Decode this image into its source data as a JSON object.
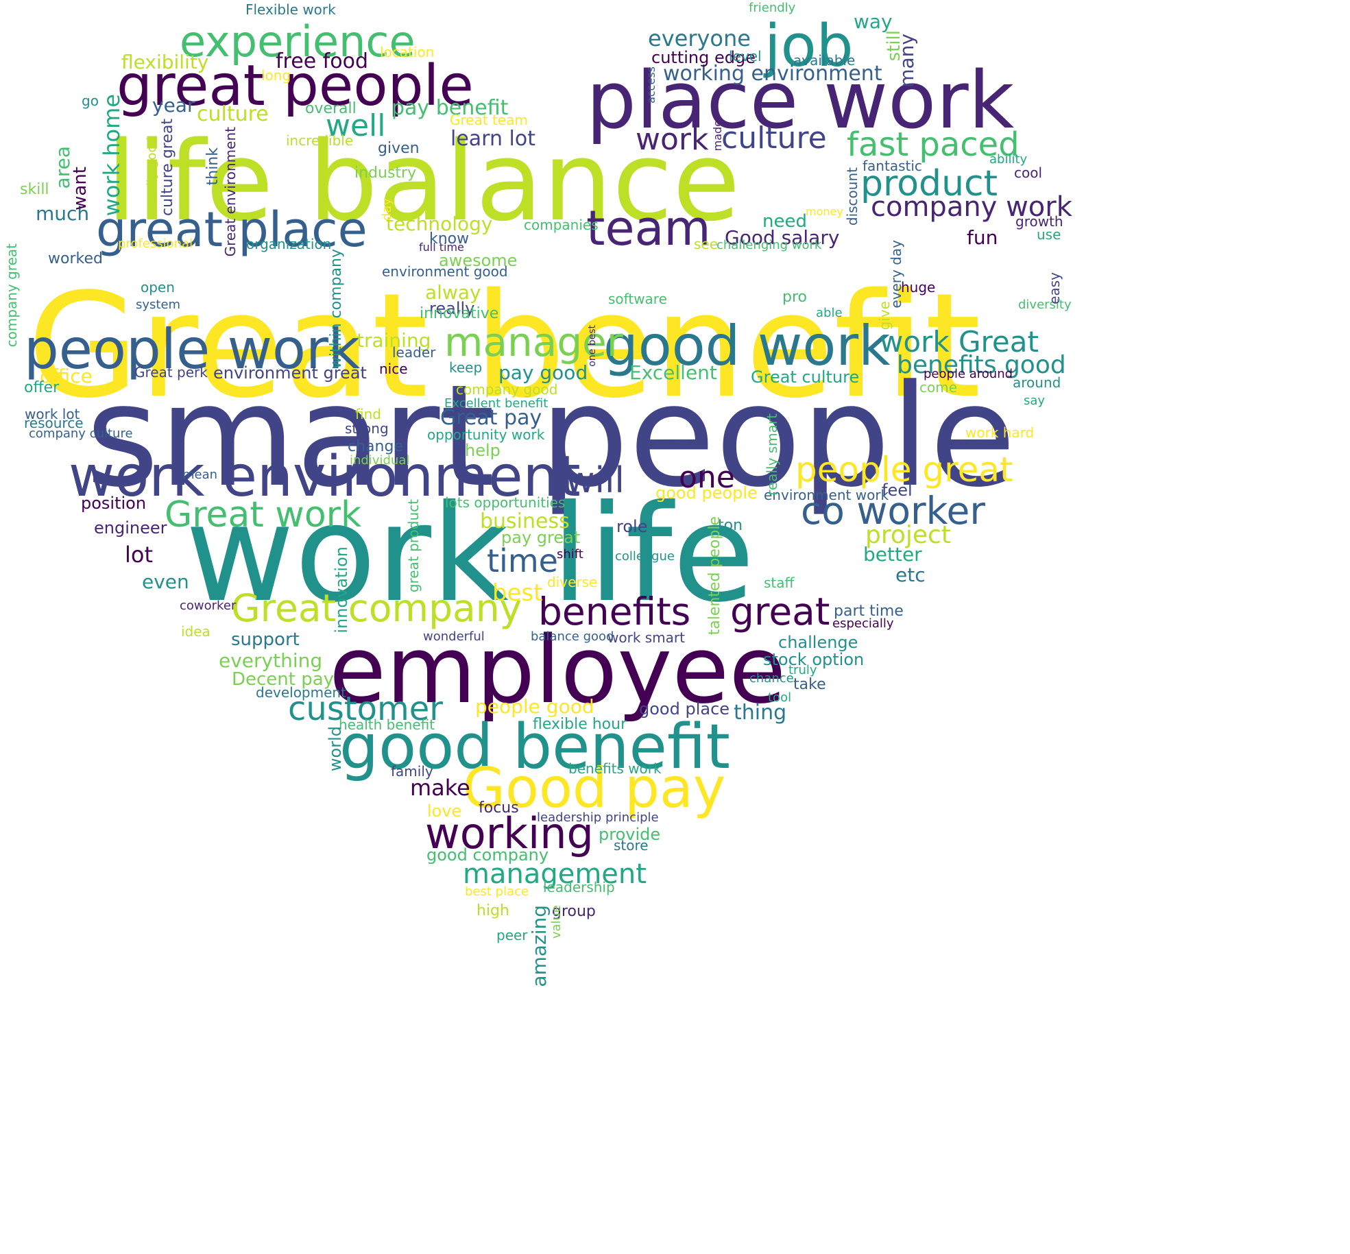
{
  "palette": {
    "p1": "#440154",
    "p2": "#482475",
    "p3": "#414487",
    "p4": "#355f8d",
    "p5": "#2a788e",
    "p6": "#21918c",
    "p7": "#22a884",
    "p8": "#44bf70",
    "p9": "#7ad151",
    "p10": "#bddf26",
    "p11": "#fde725"
  },
  "words": [
    {
      "text": "Great benefit",
      "color": "p11"
    },
    {
      "text": "smart people",
      "color": "p3"
    },
    {
      "text": "work life",
      "color": "p6"
    },
    {
      "text": "life balance",
      "color": "p10"
    },
    {
      "text": "employee",
      "color": "p1"
    },
    {
      "text": "place work",
      "color": "p2"
    },
    {
      "text": "good benefit",
      "color": "p6"
    },
    {
      "text": "great people",
      "color": "p1"
    },
    {
      "text": "work environment",
      "color": "p3"
    },
    {
      "text": "people work",
      "color": "p4"
    },
    {
      "text": "good work",
      "color": "p5"
    },
    {
      "text": "job",
      "color": "p6"
    },
    {
      "text": "Good pay",
      "color": "p11"
    },
    {
      "text": "great place",
      "color": "p4"
    },
    {
      "text": "experience",
      "color": "p8"
    },
    {
      "text": "team",
      "color": "p2"
    },
    {
      "text": "working",
      "color": "p1"
    },
    {
      "text": "Great company",
      "color": "p10"
    },
    {
      "text": "manager",
      "color": "p9"
    },
    {
      "text": "co worker",
      "color": "p4"
    },
    {
      "text": "benefits",
      "color": "p1"
    },
    {
      "text": "great",
      "color": "p1"
    },
    {
      "text": "Great work",
      "color": "p8"
    },
    {
      "text": "people great",
      "color": "p11"
    },
    {
      "text": "product",
      "color": "p6"
    },
    {
      "text": "fast paced",
      "color": "p8"
    },
    {
      "text": "customer",
      "color": "p6"
    },
    {
      "text": "will",
      "color": "p3"
    },
    {
      "text": "work Great",
      "color": "p6"
    },
    {
      "text": "time",
      "color": "p4"
    },
    {
      "text": "culture",
      "color": "p3"
    },
    {
      "text": "management",
      "color": "p7"
    },
    {
      "text": "well",
      "color": "p7"
    },
    {
      "text": "company work",
      "color": "p2"
    },
    {
      "text": "work",
      "color": "p2"
    },
    {
      "text": "one",
      "color": "p1"
    },
    {
      "text": "benefits good",
      "color": "p6"
    },
    {
      "text": "project",
      "color": "p10"
    },
    {
      "text": "everyone",
      "color": "p5"
    },
    {
      "text": "working environment",
      "color": "p4"
    },
    {
      "text": "free food",
      "color": "p1"
    },
    {
      "text": "lot",
      "color": "p1"
    },
    {
      "text": "best",
      "color": "p11"
    },
    {
      "text": "Good salary",
      "color": "p2"
    },
    {
      "text": "flexibility",
      "color": "p10"
    },
    {
      "text": "cutting edge",
      "color": "p1"
    },
    {
      "text": "pay benefit",
      "color": "p8"
    },
    {
      "text": "way",
      "color": "p7"
    },
    {
      "text": "Great pay",
      "color": "p4"
    },
    {
      "text": "business",
      "color": "p10"
    },
    {
      "text": "technology",
      "color": "p10"
    },
    {
      "text": "learn lot",
      "color": "p3"
    },
    {
      "text": "culture",
      "color": "p10"
    },
    {
      "text": "year",
      "color": "p4"
    },
    {
      "text": "training",
      "color": "p10"
    },
    {
      "text": "Excellent",
      "color": "p8"
    },
    {
      "text": "pay good",
      "color": "p6"
    },
    {
      "text": "need",
      "color": "p7"
    },
    {
      "text": "fun",
      "color": "p1"
    },
    {
      "text": "alway",
      "color": "p10"
    },
    {
      "text": "much",
      "color": "p5"
    },
    {
      "text": "better",
      "color": "p7"
    },
    {
      "text": "everything",
      "color": "p9"
    },
    {
      "text": "people good",
      "color": "p11"
    },
    {
      "text": "thing",
      "color": "p5"
    },
    {
      "text": "challenge",
      "color": "p6"
    },
    {
      "text": "Decent pay",
      "color": "p9"
    },
    {
      "text": "support",
      "color": "p5"
    },
    {
      "text": "etc",
      "color": "p5"
    },
    {
      "text": "even",
      "color": "p6"
    },
    {
      "text": "environment great",
      "color": "p3"
    },
    {
      "text": "Great culture",
      "color": "p7"
    },
    {
      "text": "awesome",
      "color": "p9"
    },
    {
      "text": "really",
      "color": "p3"
    },
    {
      "text": "pay great",
      "color": "p9"
    },
    {
      "text": "stock option",
      "color": "p6"
    },
    {
      "text": "help",
      "color": "p9"
    },
    {
      "text": "office",
      "color": "p11"
    },
    {
      "text": "good place",
      "color": "p3"
    },
    {
      "text": "make",
      "color": "p1"
    },
    {
      "text": "provide",
      "color": "p8"
    },
    {
      "text": "good company",
      "color": "p8"
    },
    {
      "text": "engineer",
      "color": "p2"
    },
    {
      "text": "position",
      "color": "p1"
    },
    {
      "text": "role",
      "color": "p3"
    },
    {
      "text": "feel",
      "color": "p3"
    },
    {
      "text": "love",
      "color": "p11"
    },
    {
      "text": "work smart",
      "color": "p3"
    },
    {
      "text": "group",
      "color": "p2"
    },
    {
      "text": "overall",
      "color": "p8"
    },
    {
      "text": "given",
      "color": "p4"
    },
    {
      "text": "industry",
      "color": "p9"
    },
    {
      "text": "know",
      "color": "p4"
    },
    {
      "text": "innovative",
      "color": "p8"
    },
    {
      "text": "strong",
      "color": "p3"
    },
    {
      "text": "change",
      "color": "p4"
    },
    {
      "text": "keep",
      "color": "p6"
    },
    {
      "text": "nice",
      "color": "p1"
    },
    {
      "text": "leader",
      "color": "p4"
    },
    {
      "text": "offer",
      "color": "p7"
    },
    {
      "text": "worked",
      "color": "p4"
    },
    {
      "text": "skill",
      "color": "p9"
    },
    {
      "text": "go",
      "color": "p6"
    },
    {
      "text": "Flexible work",
      "color": "p5"
    },
    {
      "text": "friendly",
      "color": "p8"
    },
    {
      "text": "level",
      "color": "p6"
    },
    {
      "text": "location",
      "color": "p11"
    },
    {
      "text": "available",
      "color": "p5"
    },
    {
      "text": "long",
      "color": "p11"
    },
    {
      "text": "Great team",
      "color": "p11"
    },
    {
      "text": "incredible",
      "color": "p10"
    },
    {
      "text": "fantastic",
      "color": "p4"
    },
    {
      "text": "ability",
      "color": "p7"
    },
    {
      "text": "cool",
      "color": "p2"
    },
    {
      "text": "growth",
      "color": "p2"
    },
    {
      "text": "use",
      "color": "p7"
    },
    {
      "text": "money",
      "color": "p11"
    },
    {
      "text": "companies",
      "color": "p8"
    },
    {
      "text": "organization",
      "color": "p6"
    },
    {
      "text": "professional",
      "color": "p11"
    },
    {
      "text": "full time",
      "color": "p2"
    },
    {
      "text": "see",
      "color": "p10"
    },
    {
      "text": "challenging work",
      "color": "p8"
    },
    {
      "text": "environment good",
      "color": "p4"
    },
    {
      "text": "open",
      "color": "p6"
    },
    {
      "text": "system",
      "color": "p4"
    },
    {
      "text": "software",
      "color": "p8"
    },
    {
      "text": "pro",
      "color": "p8"
    },
    {
      "text": "able",
      "color": "p7"
    },
    {
      "text": "huge",
      "color": "p1"
    },
    {
      "text": "diversity",
      "color": "p8"
    },
    {
      "text": "Great perk",
      "color": "p3"
    },
    {
      "text": "people around",
      "color": "p1"
    },
    {
      "text": "around",
      "color": "p6"
    },
    {
      "text": "say",
      "color": "p7"
    },
    {
      "text": "come",
      "color": "p9"
    },
    {
      "text": "company good",
      "color": "p10"
    },
    {
      "text": "Excellent benefit",
      "color": "p7"
    },
    {
      "text": "work lot",
      "color": "p4"
    },
    {
      "text": "resource",
      "color": "p5"
    },
    {
      "text": "company culture",
      "color": "p4"
    },
    {
      "text": "find",
      "color": "p10"
    },
    {
      "text": "opportunity work",
      "color": "p7"
    },
    {
      "text": "individual",
      "color": "p9"
    },
    {
      "text": "work hard",
      "color": "p11"
    },
    {
      "text": "mean",
      "color": "p4"
    },
    {
      "text": "good people",
      "color": "p11"
    },
    {
      "text": "environment work",
      "color": "p4"
    },
    {
      "text": "lots opportunities",
      "color": "p8"
    },
    {
      "text": "ton",
      "color": "p6"
    },
    {
      "text": "shift",
      "color": "p1"
    },
    {
      "text": "colleague",
      "color": "p6"
    },
    {
      "text": "diverse",
      "color": "p11"
    },
    {
      "text": "staff",
      "color": "p8"
    },
    {
      "text": "part time",
      "color": "p4"
    },
    {
      "text": "especially",
      "color": "p1"
    },
    {
      "text": "coworker",
      "color": "p2"
    },
    {
      "text": "idea",
      "color": "p10"
    },
    {
      "text": "wonderful",
      "color": "p3"
    },
    {
      "text": "balance good",
      "color": "p4"
    },
    {
      "text": "truly",
      "color": "p7"
    },
    {
      "text": "chance",
      "color": "p6"
    },
    {
      "text": "take",
      "color": "p4"
    },
    {
      "text": "tool",
      "color": "p7"
    },
    {
      "text": "development",
      "color": "p5"
    },
    {
      "text": "health benefit",
      "color": "p8"
    },
    {
      "text": "flexible hour",
      "color": "p7"
    },
    {
      "text": "family",
      "color": "p3"
    },
    {
      "text": "benefits work",
      "color": "p7"
    },
    {
      "text": "focus",
      "color": "p2"
    },
    {
      "text": "leadership principle",
      "color": "p3"
    },
    {
      "text": "store",
      "color": "p5"
    },
    {
      "text": "leadership",
      "color": "p8"
    },
    {
      "text": "best place",
      "color": "p11"
    },
    {
      "text": "high",
      "color": "p10"
    },
    {
      "text": "peer",
      "color": "p7"
    },
    {
      "text": "work home",
      "color": "p7"
    },
    {
      "text": "area",
      "color": "p8"
    },
    {
      "text": "want",
      "color": "p1"
    },
    {
      "text": "culture great",
      "color": "p3"
    },
    {
      "text": "really good",
      "color": "p10"
    },
    {
      "text": "think",
      "color": "p4"
    },
    {
      "text": "Great environment",
      "color": "p2"
    },
    {
      "text": "company great",
      "color": "p8"
    },
    {
      "text": "within company",
      "color": "p6"
    },
    {
      "text": "day",
      "color": "p11"
    },
    {
      "text": "access",
      "color": "p4"
    },
    {
      "text": "made",
      "color": "p2"
    },
    {
      "text": "discount",
      "color": "p4"
    },
    {
      "text": "still",
      "color": "p9"
    },
    {
      "text": "many",
      "color": "p3"
    },
    {
      "text": "every day",
      "color": "p4"
    },
    {
      "text": "easy",
      "color": "p3"
    },
    {
      "text": "give",
      "color": "p10"
    },
    {
      "text": "one best",
      "color": "p2"
    },
    {
      "text": "really smart",
      "color": "p8"
    },
    {
      "text": "great product",
      "color": "p8"
    },
    {
      "text": "talented people",
      "color": "p9"
    },
    {
      "text": "innovation",
      "color": "p7"
    },
    {
      "text": "world",
      "color": "p6"
    },
    {
      "text": "amazing",
      "color": "p6"
    },
    {
      "text": "value",
      "color": "p9"
    }
  ]
}
